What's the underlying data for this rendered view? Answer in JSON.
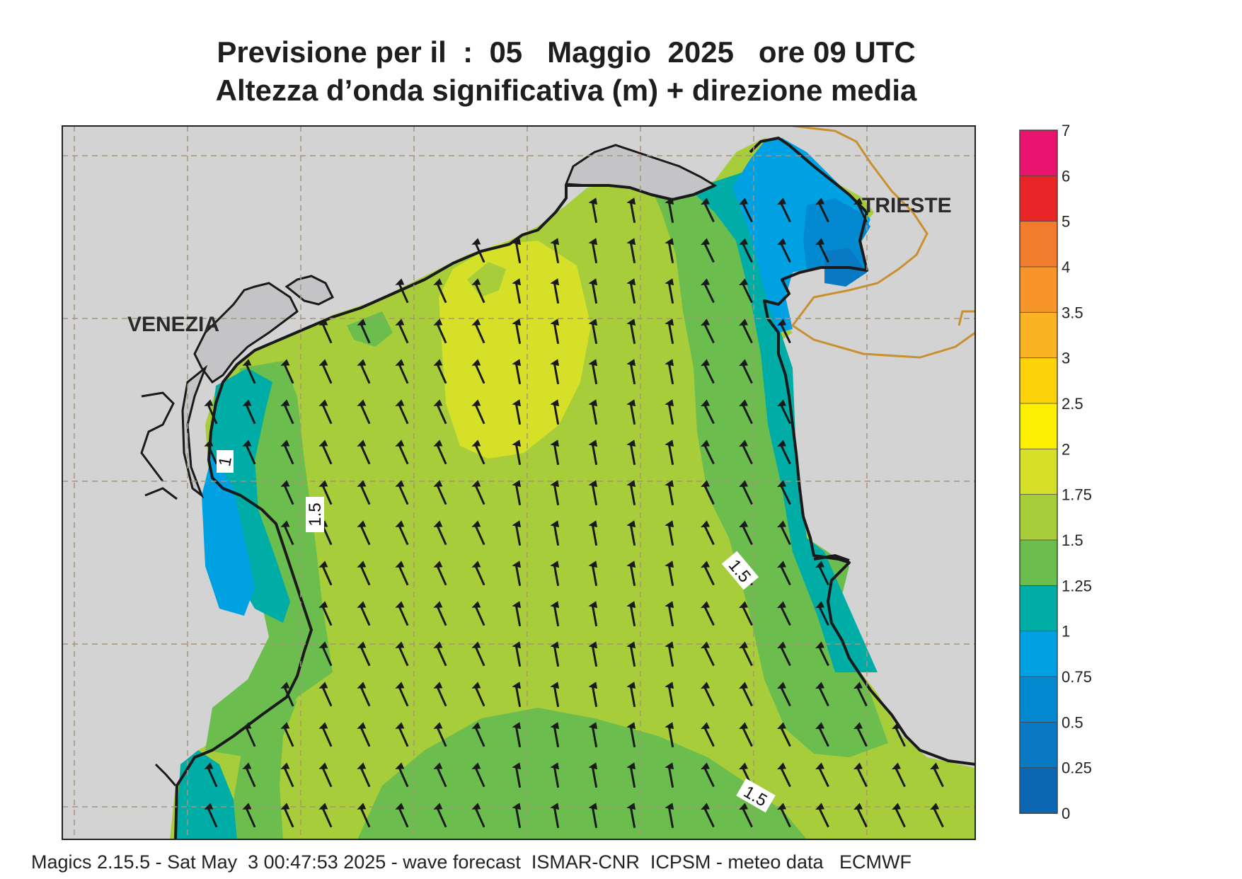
{
  "header": {
    "title_line1": "Previsione per il  :  05   Maggio  2025   ore 09 UTC",
    "title_line2": "Altezza d’onda significativa (m) + direzione media"
  },
  "map": {
    "place_labels": [
      "VENEZIA",
      "TRIESTE"
    ],
    "contour_labels": [
      "1",
      "1.5",
      "1.5",
      "1.5"
    ],
    "mean_wave_direction": "toward north / north-west",
    "colors": {
      "land": "#d3d3d4",
      "lagoon_land": "#c4c4c6",
      "coastline": "#1a1a1a",
      "border": "#c8902e",
      "graticule": "#a89478"
    }
  },
  "legend": {
    "ticks": [
      "7",
      "6",
      "5",
      "4",
      "3.5",
      "3",
      "2.5",
      "2",
      "1.75",
      "1.5",
      "1.25",
      "1",
      "0.75",
      "0.5",
      "0.25",
      "0"
    ],
    "colors": [
      "#e8146f",
      "#e82426",
      "#f07c2c",
      "#f5952a",
      "#f9b323",
      "#fcd30a",
      "#fdf000",
      "#d6e028",
      "#a7cd3b",
      "#6bbd4e",
      "#00aca6",
      "#00a1e3",
      "#0289cf",
      "#0879c2",
      "#0b67b2"
    ]
  },
  "footer": {
    "text": "Magics 2.15.5 - Sat May  3 00:47:53 2025 - wave forecast  ISMAR-CNR  ICPSM - meteo data   ECMWF"
  }
}
